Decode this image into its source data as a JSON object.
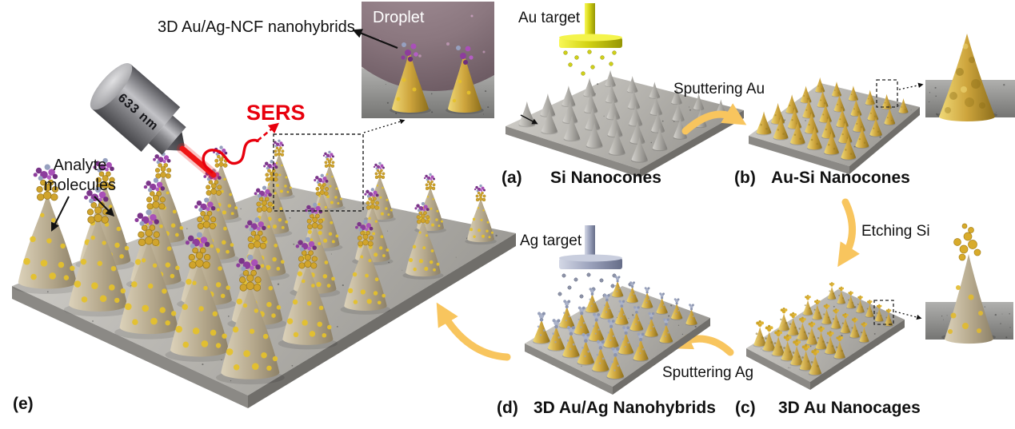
{
  "figure": {
    "type": "fabrication-process-schematic",
    "background": "#ffffff",
    "colors": {
      "sers_red": "#e8000d",
      "laser_beam_red": "#ee1515",
      "process_arrow_yellow": "#f8c55e",
      "gold": "#cda43c",
      "silver_grey": "#9aa1bb",
      "silicon_grey": "#a7a5a0",
      "molecule_purple": "#8d3d9c",
      "droplet_mauve": "#8b777f",
      "label_black": "#111111"
    },
    "panel_e": {
      "tag": "(e)",
      "laser": {
        "wavelength_label": "633 nm",
        "icon": "laser-objective-icon"
      },
      "sers_label": "SERS",
      "analyte_label": {
        "line1": "Analyte",
        "line2": "molecules"
      },
      "callout_label": "3D Au/Ag-NCF nanohybrids",
      "inset": {
        "droplet_label": "Droplet"
      }
    },
    "panel_a": {
      "tag": "(a)",
      "title": "Si Nanocones",
      "target_label": "Au target"
    },
    "panel_b": {
      "tag": "(b)",
      "title": "Au-Si Nanocones"
    },
    "panel_c": {
      "tag": "(c)",
      "title": "3D Au Nanocages"
    },
    "panel_d": {
      "tag": "(d)",
      "title": "3D Au/Ag Nanohybrids",
      "target_label": "Ag target"
    },
    "process_steps": {
      "a_to_b": "Sputtering Au",
      "b_to_c": "Etching Si",
      "c_to_d": "Sputtering Ag"
    }
  }
}
